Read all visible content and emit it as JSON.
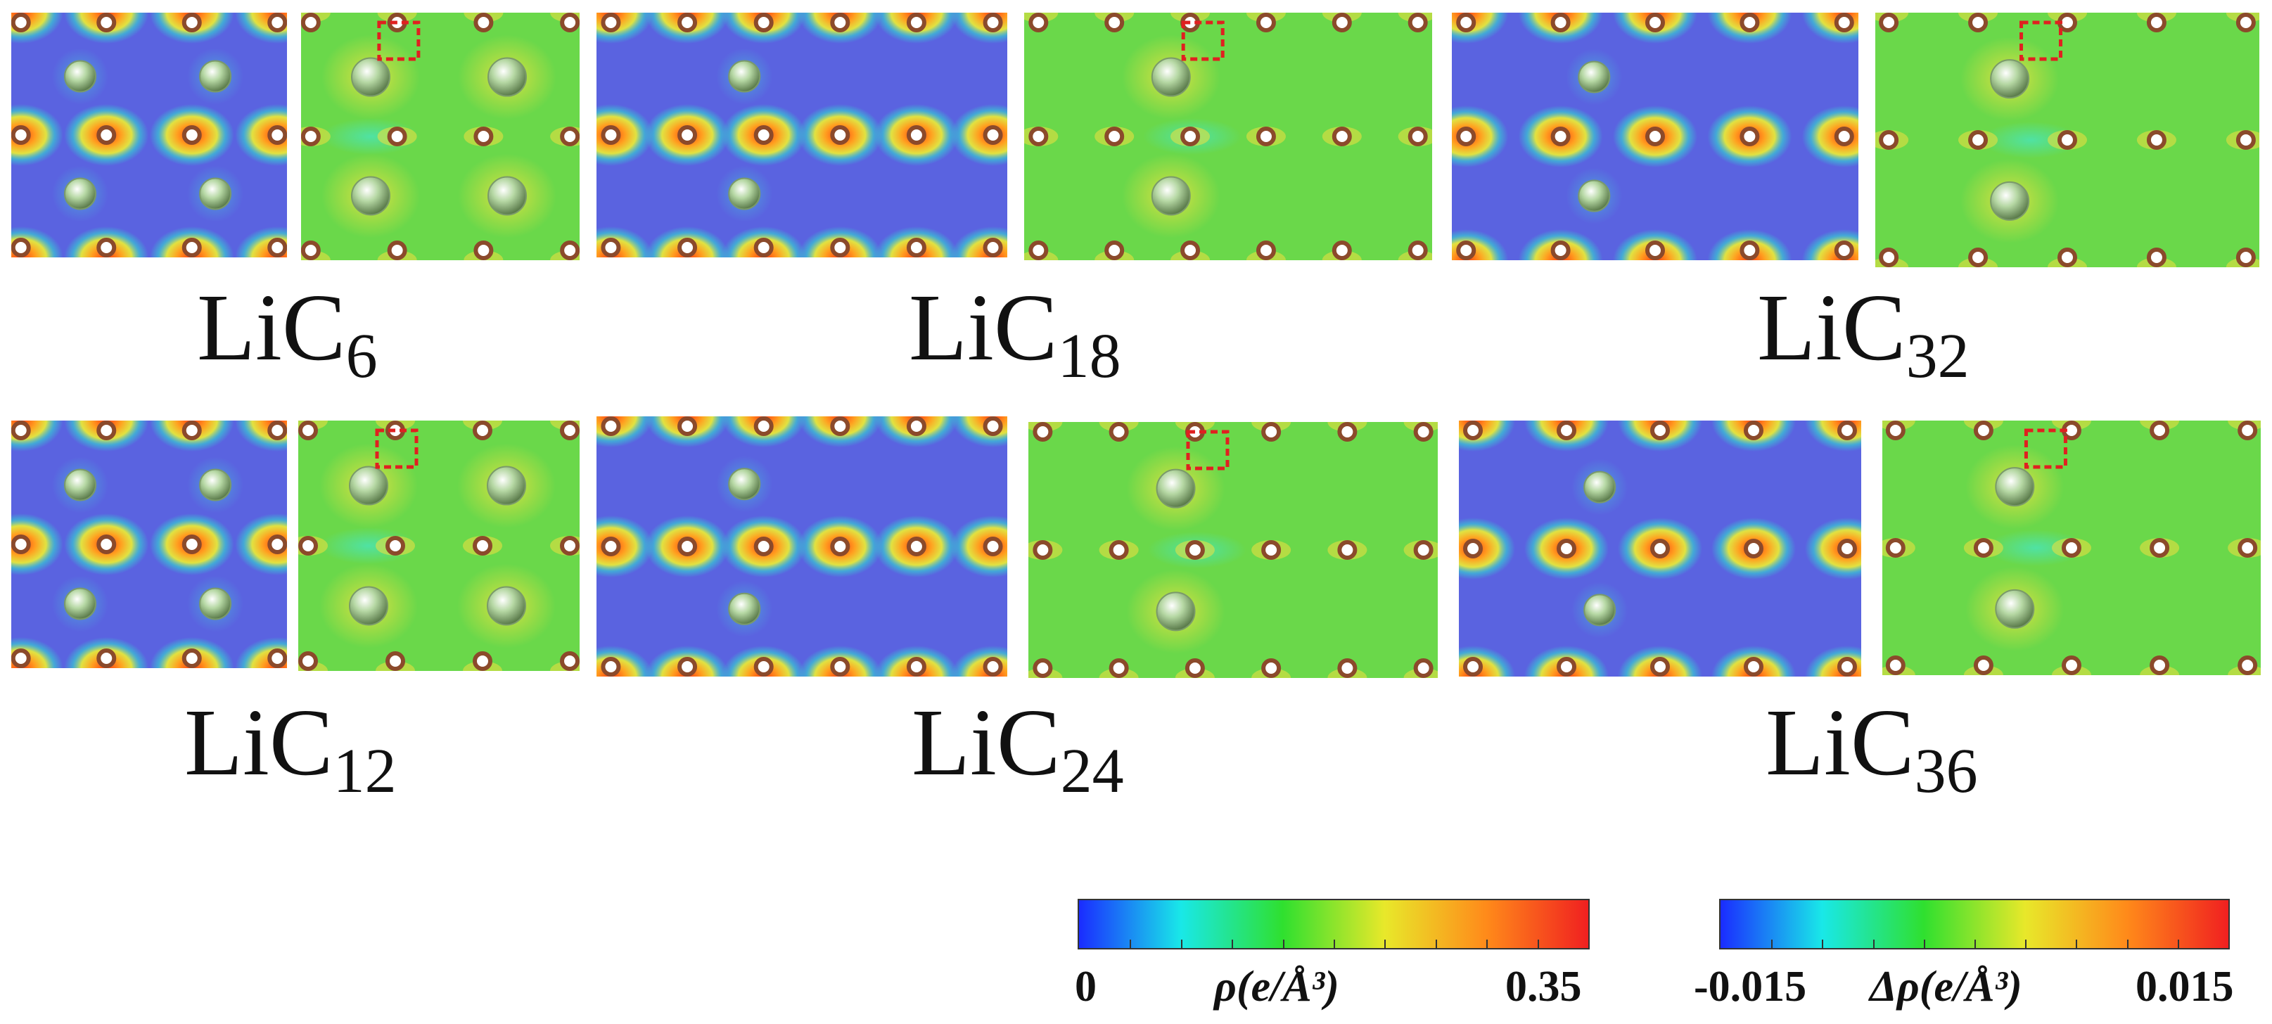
{
  "colors": {
    "density_bg": "#5a63e0",
    "difference_bg": "#6ad84a",
    "carbon_atom": "#8b4a2b",
    "lithium_atom": "#b6d8a4",
    "highlight_box": "#e02020"
  },
  "rows": [
    {
      "labels": [
        {
          "base": "LiC",
          "sub": "6"
        },
        {
          "base": "LiC",
          "sub": "18"
        },
        {
          "base": "LiC",
          "sub": "32"
        }
      ]
    },
    {
      "labels": [
        {
          "base": "LiC",
          "sub": "12"
        },
        {
          "base": "LiC",
          "sub": "24"
        },
        {
          "base": "LiC",
          "sub": "36"
        }
      ]
    }
  ],
  "colorbars": [
    {
      "min": "0",
      "max": "0.35",
      "title": "ρ(e/Å³)",
      "gradient": [
        "#1a2cff",
        "#19e8e8",
        "#2fe02f",
        "#e8e82a",
        "#ff8a1a",
        "#f02020"
      ]
    },
    {
      "min": "-0.015",
      "max": "0.015",
      "title": "Δρ(e/Å³)",
      "gradient": [
        "#1a2cff",
        "#19e8e8",
        "#2fe02f",
        "#e8e82a",
        "#ff8a1a",
        "#f02020"
      ]
    }
  ]
}
